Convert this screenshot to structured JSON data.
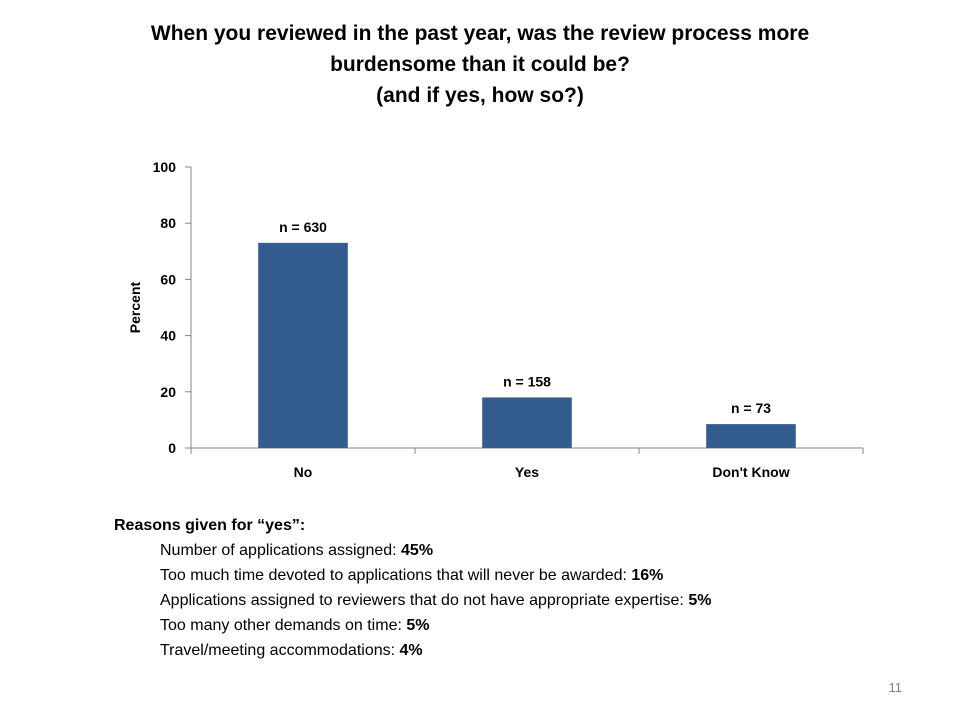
{
  "slide": {
    "title_lines": [
      "When you reviewed in the past year, was the review process more",
      "burdensome than it could be?",
      "(and if yes, how so?)"
    ],
    "page_number": "11"
  },
  "chart_data": {
    "type": "bar",
    "categories": [
      "No",
      "Yes",
      "Don't Know"
    ],
    "values": [
      73,
      18,
      8.5
    ],
    "data_labels": [
      "n = 630",
      "n = 158",
      "n = 73"
    ],
    "title": "",
    "xlabel": "",
    "ylabel": "Percent",
    "ylim": [
      0,
      100
    ],
    "yticks": [
      0,
      20,
      40,
      60,
      80,
      100
    ],
    "grid": false,
    "bar_color": "#335D8F"
  },
  "reasons": {
    "heading": "Reasons given for “yes”:",
    "items": [
      {
        "text": "Number of applications assigned:  ",
        "value": "45%"
      },
      {
        "text": "Too much time devoted to applications that will never be awarded:  ",
        "value": "16%"
      },
      {
        "text": "Applications assigned to reviewers that do not have appropriate expertise:  ",
        "value": "5%"
      },
      {
        "text": "Too many other demands on time:  ",
        "value": "5%"
      },
      {
        "text": "Travel/meeting accommodations:  ",
        "value": "4%"
      }
    ]
  }
}
